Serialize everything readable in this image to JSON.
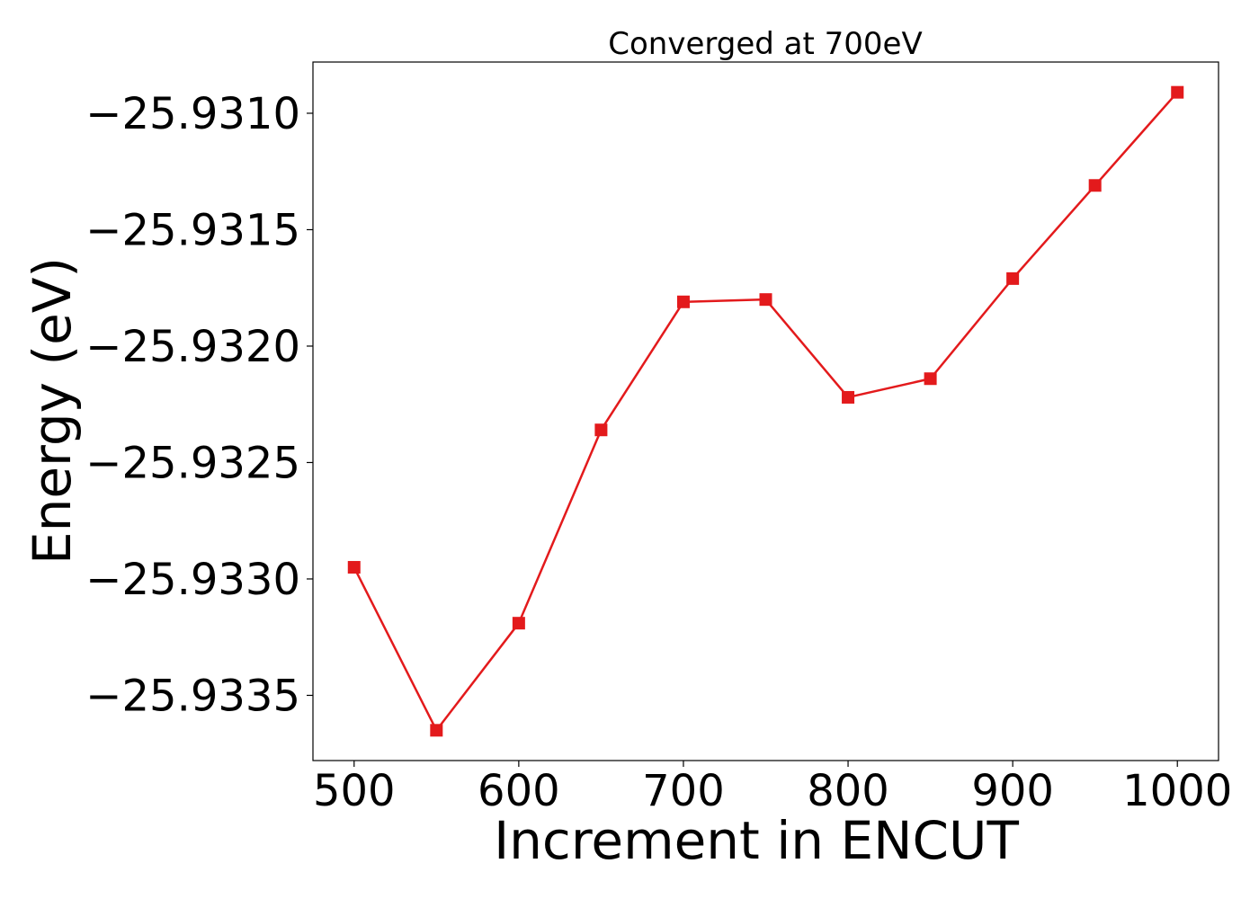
{
  "chart_data": {
    "type": "line",
    "title": "Converged at 700eV",
    "xlabel": "Increment in ENCUT",
    "ylabel": "Energy (eV)",
    "x": [
      500,
      550,
      600,
      650,
      700,
      750,
      800,
      850,
      900,
      950,
      1000
    ],
    "series": [
      {
        "values": [
          -25.93295,
          -25.93365,
          -25.93319,
          -25.93236,
          -25.93181,
          -25.9318,
          -25.93222,
          -25.93214,
          -25.93171,
          -25.93131,
          -25.93091
        ],
        "color": "#e31a1c",
        "marker": "square"
      }
    ],
    "xlim": [
      475,
      1025
    ],
    "ylim": [
      -25.93378,
      -25.93078
    ],
    "xticks": [
      500,
      600,
      700,
      800,
      900,
      1000
    ],
    "xtick_labels": [
      "500",
      "600",
      "700",
      "800",
      "900",
      "1000"
    ],
    "yticks": [
      -25.9335,
      -25.933,
      -25.9325,
      -25.932,
      -25.9315,
      -25.931
    ],
    "ytick_labels": [
      "−25.9335",
      "−25.9330",
      "−25.9325",
      "−25.9320",
      "−25.9315",
      "−25.9310"
    ],
    "grid": false,
    "legend": "none"
  }
}
